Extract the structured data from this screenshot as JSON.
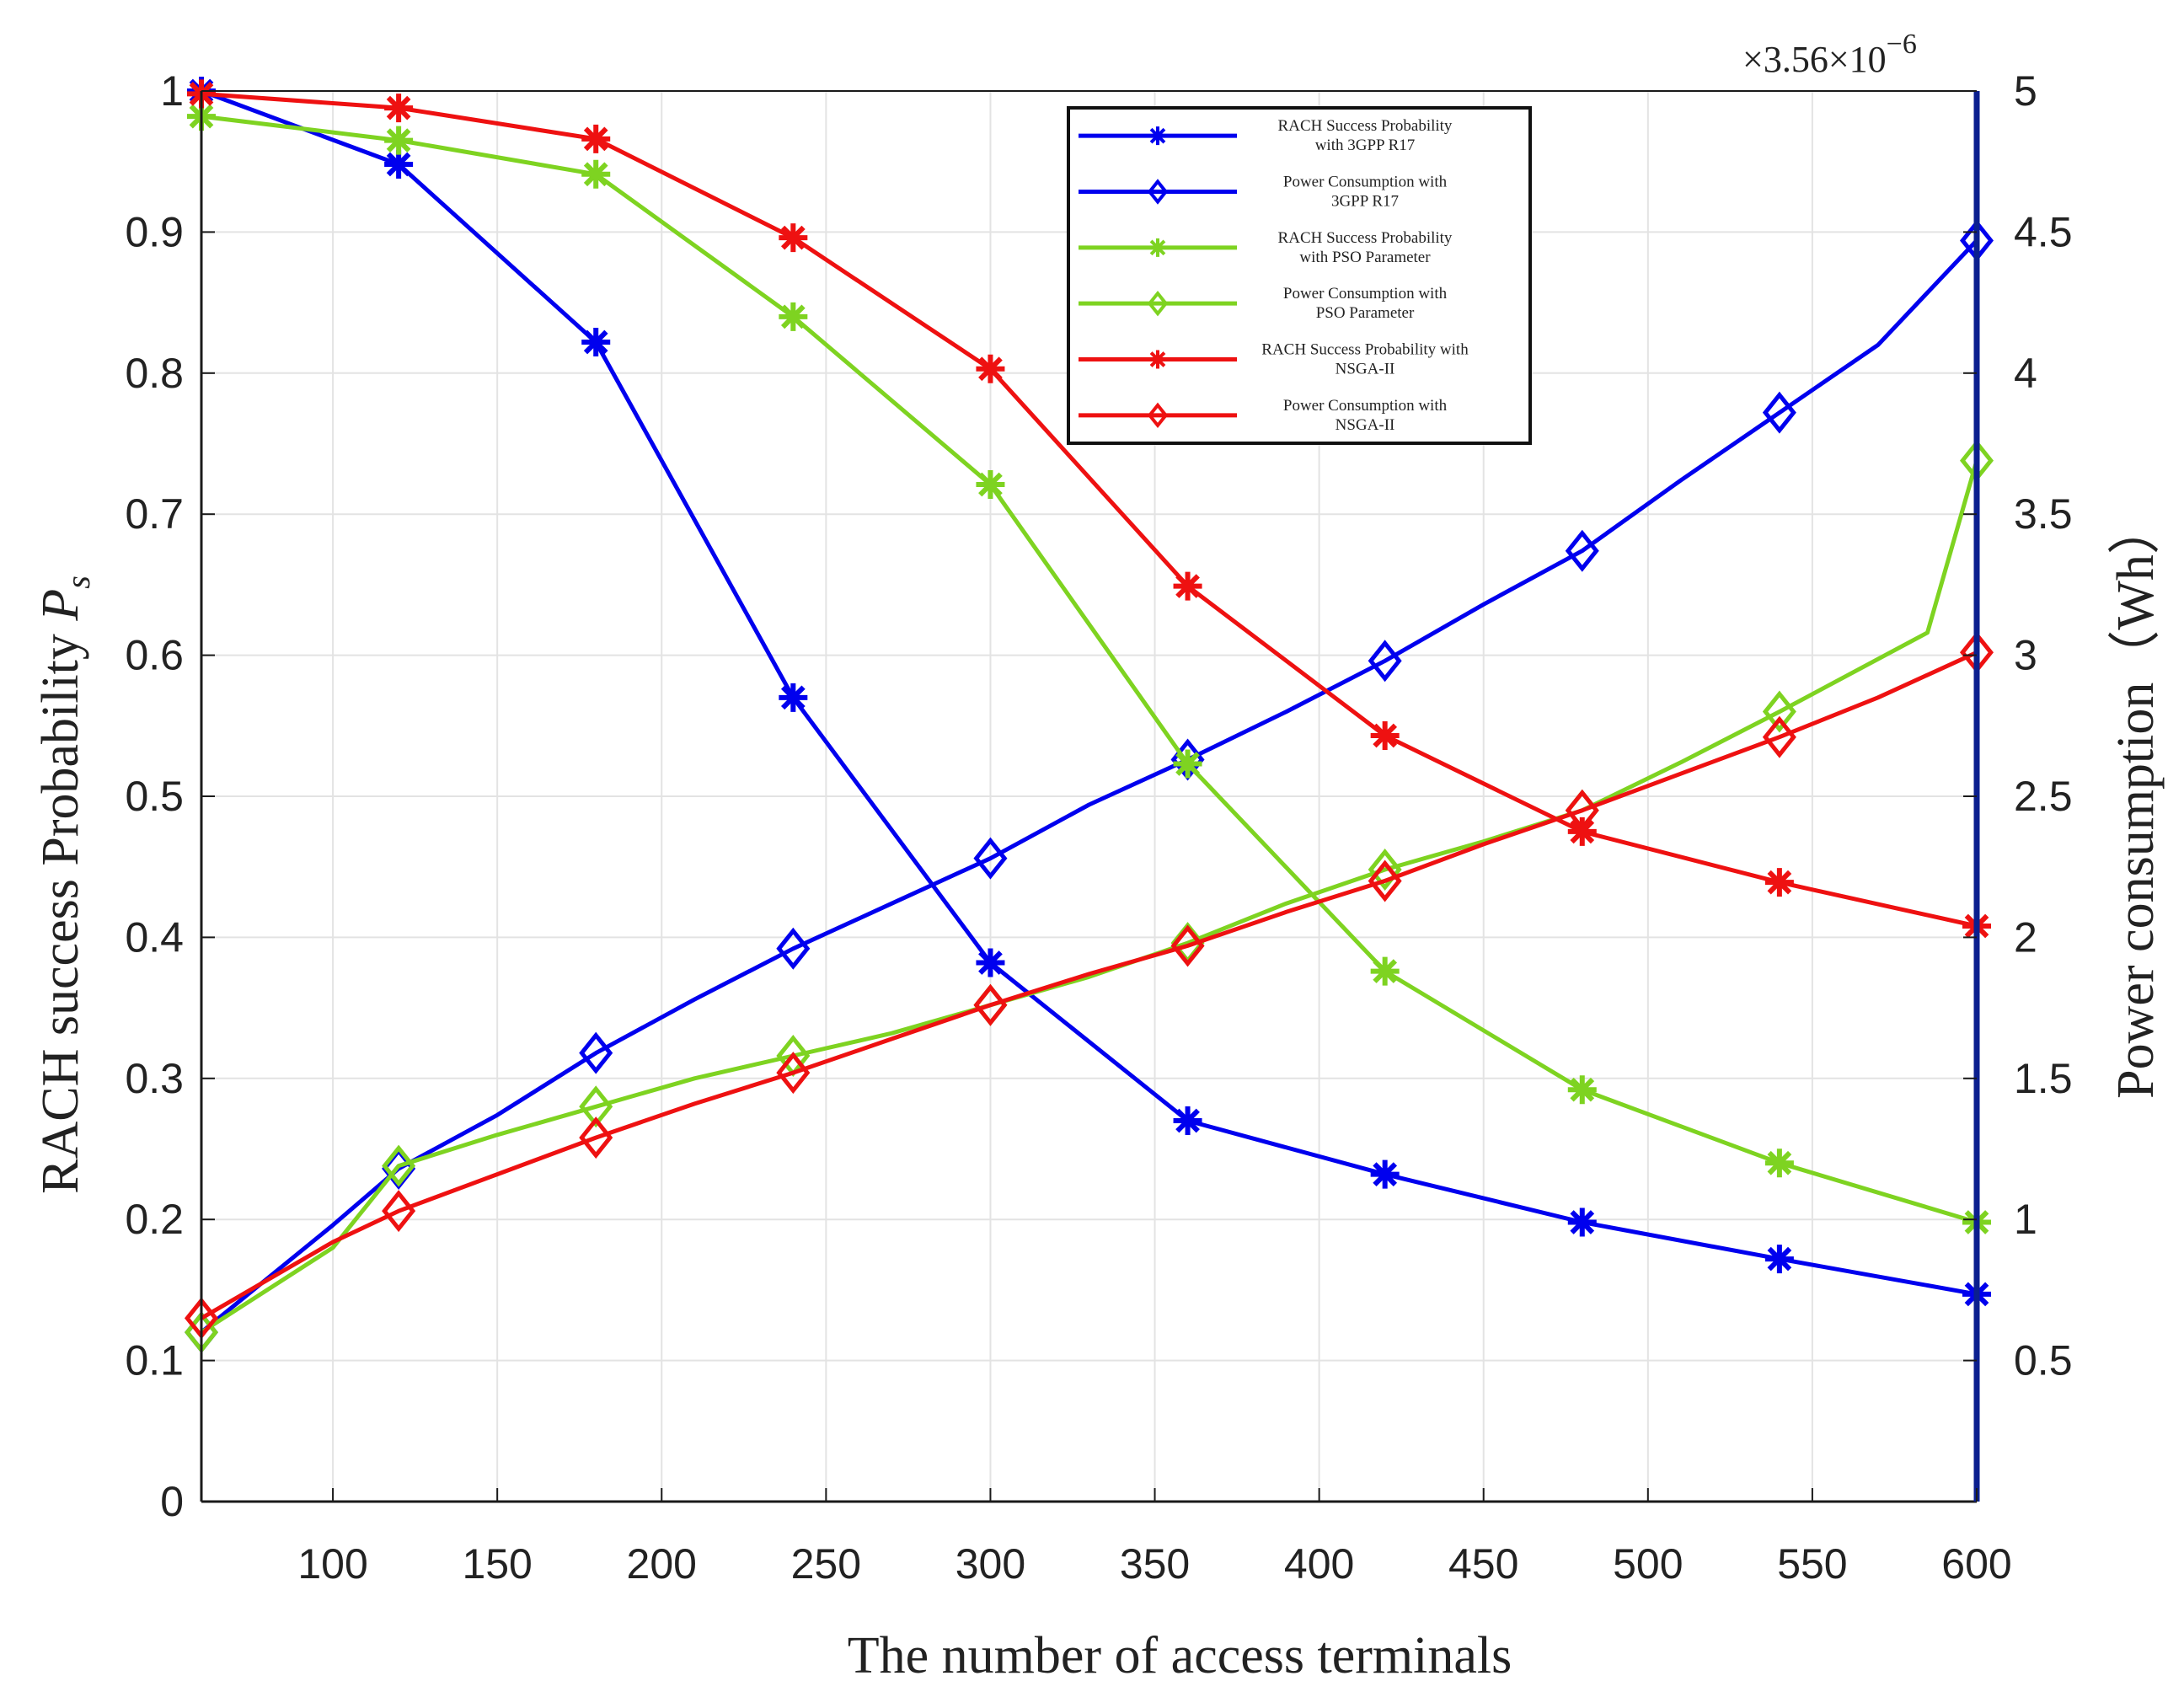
{
  "chart_data": {
    "type": "line",
    "title": "",
    "xlabel": "The number of access terminals",
    "ylabel_left": "RACH success Probability",
    "ylabel_left_symbol": "P",
    "ylabel_left_subscript": "s",
    "ylabel_right": "Power consumption（Wh）",
    "right_axis_multiplier": "×3.56×10",
    "right_axis_exponent": "−6",
    "xlim": [
      60,
      600
    ],
    "ylim_left": [
      0,
      1
    ],
    "ylim_right": [
      0,
      5
    ],
    "xticks": [
      100,
      150,
      200,
      250,
      300,
      350,
      400,
      450,
      500,
      550,
      600
    ],
    "yticks_left": [
      0,
      0.1,
      0.2,
      0.3,
      0.4,
      0.5,
      0.6,
      0.7,
      0.8,
      0.9,
      1
    ],
    "yticks_right": [
      0.5,
      1,
      1.5,
      2,
      2.5,
      3,
      3.5,
      4,
      4.5,
      5
    ],
    "grid": true,
    "legend_position": "top-right",
    "series": [
      {
        "name": "RACH Success Probability with 3GPP R17",
        "legend_lines": [
          "RACH Success Probability",
          "with 3GPP R17"
        ],
        "color": "#0000ee",
        "marker": "asterisk",
        "axis": "left",
        "x": [
          60,
          120,
          180,
          240,
          300,
          360,
          420,
          480,
          540,
          600
        ],
        "y": [
          1.0,
          0.948,
          0.822,
          0.57,
          0.382,
          0.27,
          0.232,
          0.198,
          0.172,
          0.147
        ]
      },
      {
        "name": "Power Consumption with 3GPP R17",
        "legend_lines": [
          "Power Consumption with",
          "3GPP R17"
        ],
        "color": "#0000ee",
        "marker": "diamond",
        "axis": "right",
        "x": [
          60,
          100,
          120,
          150,
          180,
          210,
          240,
          270,
          300,
          330,
          360,
          390,
          420,
          450,
          480,
          510,
          540,
          570,
          600
        ],
        "y": [
          0.6,
          0.98,
          1.18,
          1.37,
          1.59,
          1.78,
          1.96,
          2.12,
          2.28,
          2.47,
          2.63,
          2.8,
          2.98,
          3.18,
          3.37,
          3.62,
          3.86,
          4.1,
          4.47
        ]
      },
      {
        "name": "RACH Success Probability with PSO Parameter",
        "legend_lines": [
          "RACH Success Probability",
          "with PSO Parameter"
        ],
        "color": "#7ed321",
        "marker": "asterisk",
        "axis": "left",
        "x": [
          60,
          120,
          180,
          240,
          300,
          360,
          420,
          480,
          540,
          600
        ],
        "y": [
          0.982,
          0.965,
          0.941,
          0.84,
          0.721,
          0.523,
          0.376,
          0.292,
          0.24,
          0.198
        ]
      },
      {
        "name": "Power Consumption with PSO Parameter",
        "legend_lines": [
          "Power Consumption with",
          "PSO Parameter"
        ],
        "color": "#7ed321",
        "marker": "diamond",
        "axis": "right",
        "x": [
          60,
          100,
          120,
          150,
          180,
          210,
          240,
          270,
          300,
          330,
          360,
          390,
          420,
          450,
          480,
          510,
          540,
          585,
          600
        ],
        "y": [
          0.6,
          0.9,
          1.19,
          1.3,
          1.4,
          1.5,
          1.58,
          1.66,
          1.76,
          1.86,
          1.98,
          2.12,
          2.24,
          2.34,
          2.45,
          2.62,
          2.8,
          3.08,
          3.69
        ]
      },
      {
        "name": "RACH Success Probability with NSGA-II",
        "legend_lines": [
          "RACH Success Probability with",
          "NSGA-II"
        ],
        "color": "#ee1111",
        "marker": "asterisk",
        "axis": "left",
        "x": [
          60,
          120,
          180,
          240,
          300,
          360,
          420,
          480,
          540,
          600
        ],
        "y": [
          0.998,
          0.988,
          0.966,
          0.896,
          0.803,
          0.649,
          0.543,
          0.475,
          0.439,
          0.408
        ]
      },
      {
        "name": "Power Consumption with NSGA-II",
        "legend_lines": [
          "Power Consumption with",
          "NSGA-II"
        ],
        "color": "#ee1111",
        "marker": "diamond",
        "axis": "right",
        "x": [
          60,
          100,
          120,
          150,
          180,
          210,
          240,
          270,
          300,
          330,
          360,
          390,
          420,
          450,
          480,
          510,
          540,
          570,
          600
        ],
        "y": [
          0.65,
          0.92,
          1.03,
          1.16,
          1.29,
          1.41,
          1.52,
          1.64,
          1.76,
          1.87,
          1.97,
          2.09,
          2.2,
          2.33,
          2.45,
          2.58,
          2.71,
          2.85,
          3.01
        ]
      }
    ]
  }
}
